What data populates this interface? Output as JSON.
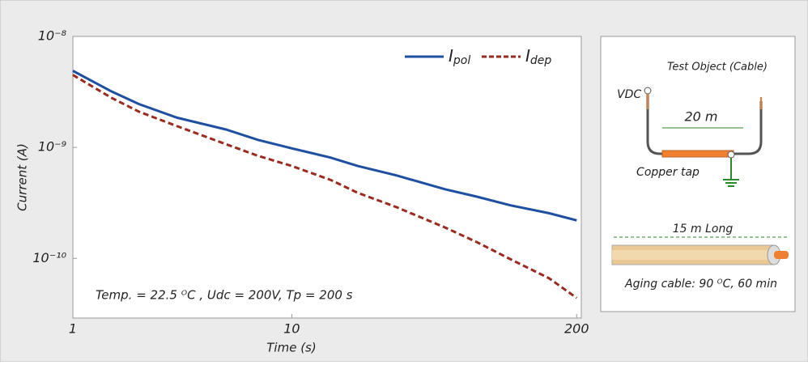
{
  "chart_data": {
    "type": "line",
    "x_label": "Time (s)",
    "y_label": "Current (A)",
    "x": [
      1,
      1.5,
      2,
      3,
      5,
      7,
      10,
      15,
      20,
      30,
      50,
      70,
      100,
      150,
      200
    ],
    "series": [
      {
        "name": "Ipol",
        "color": "#1f4fa0",
        "line_style": "solid",
        "values": [
          4.9e-09,
          3.2e-09,
          2.46e-09,
          1.85e-09,
          1.45e-09,
          1.17e-09,
          9.8e-10,
          8.1e-10,
          6.8e-10,
          5.6e-10,
          4.2e-10,
          3.6e-10,
          3e-10,
          2.55e-10,
          2.2e-10
        ]
      },
      {
        "name": "Idep",
        "color": "#9b2a1f",
        "line_style": "dashed",
        "values": [
          4.5e-09,
          2.8e-09,
          2.1e-09,
          1.55e-09,
          1.07e-09,
          8.4e-10,
          6.8e-10,
          5.1e-10,
          3.9e-10,
          2.9e-10,
          1.9e-10,
          1.4e-10,
          9.8e-11,
          6.6e-11,
          4.4e-11
        ]
      }
    ],
    "x_log": true,
    "y_log": true,
    "xlim": [
      1,
      210
    ],
    "xticks": [
      1,
      10,
      200
    ],
    "ylim": [
      2.9e-11,
      1e-08
    ],
    "yticks": [
      {
        "value": 1e-08,
        "label": "10⁻⁸"
      },
      {
        "value": 1e-09,
        "label": "10⁻⁹"
      },
      {
        "value": 1e-10,
        "label": "10⁻¹⁰"
      }
    ],
    "legend": "upper right",
    "annotation": "Temp. = 22.5 ᴼC , Udc = 200V, Tp = 200 s"
  },
  "diagram": {
    "title": "Test Object (Cable)",
    "source": "VDC",
    "length": "20 m",
    "tap": "Copper tap",
    "sample_length": "15 m Long",
    "aging": "Aging cable: 90 ᴼC, 60 min"
  }
}
